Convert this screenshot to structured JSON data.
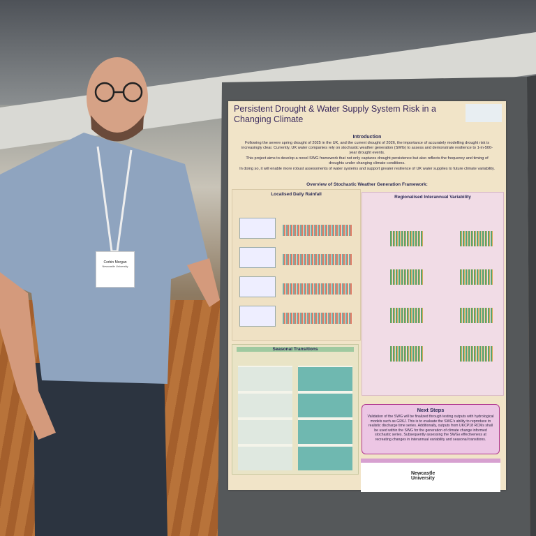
{
  "badge": {
    "name": "Corbin Morgan",
    "affiliation": "Newcastle University"
  },
  "poster": {
    "title": "Persistent Drought & Water Supply System Risk in a Changing Climate",
    "introduction": {
      "heading": "Introduction",
      "paragraphs": [
        "Following the severe spring drought of 2025 in the UK, and the current drought of 2026, the importance of accurately modelling drought risk is increasingly clear. Currently, UK water companies rely on stochastic weather generation (SWG) to assess and demonstrate resilience to 1-in-500-year drought events.",
        "This project aims to develop a novel SWG framework that not only captures drought persistence but also reflects the frequency and timing of droughts under changing climate conditions.",
        "In doing so, it will enable more robust assessments of water systems and support greater resilience of UK water supplies to future climate variability."
      ]
    },
    "overview_heading": "Overview of Stochastic Weather Generation Framework:",
    "sections": [
      {
        "heading": "Localised Daily Rainfall"
      },
      {
        "heading": "Regionalised Interannual Variability"
      },
      {
        "heading": "Seasonal Transitions"
      }
    ],
    "next_steps": {
      "heading": "Next Steps",
      "text": "Validation of the SWG will be finalized through testing outputs with hydrological models such as GR6J. This is to evaluate the SWG's ability to reproduce to realistic discharge time series. Additionally, outputs from UKCP18 RCMs shall be used within the SWG for the generation of climate change informed stochastic series. Subsequently assessing the SWGs effectiveness at recreating changes in interannual variability and seasonal transitions."
    },
    "footer_logo": "Newcastle University"
  }
}
